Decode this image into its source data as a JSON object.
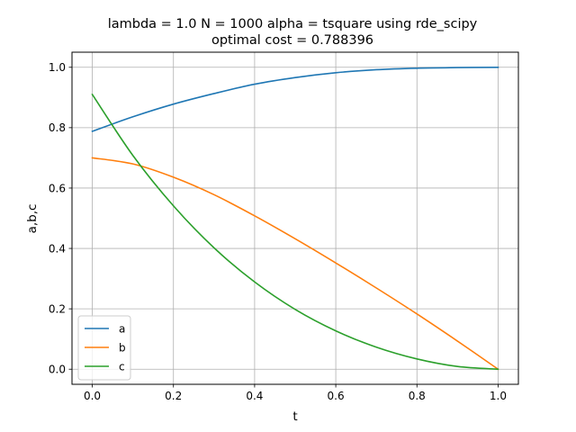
{
  "chart_data": {
    "type": "line",
    "title": "lambda = 1.0 N = 1000 alpha = tsquare using rde_scipy",
    "subtitle": "optimal cost = 0.788396",
    "xlabel": "t",
    "ylabel": "a,b,c",
    "xlim": [
      -0.05,
      1.05
    ],
    "ylim": [
      -0.05,
      1.05
    ],
    "xticks": [
      0.0,
      0.2,
      0.4,
      0.6,
      0.8,
      1.0
    ],
    "xtick_labels": [
      "0.0",
      "0.2",
      "0.4",
      "0.6",
      "0.8",
      "1.0"
    ],
    "yticks": [
      0.0,
      0.2,
      0.4,
      0.6,
      0.8,
      1.0
    ],
    "ytick_labels": [
      "0.0",
      "0.2",
      "0.4",
      "0.6",
      "0.8",
      "1.0"
    ],
    "grid": true,
    "legend_position": "lower-left",
    "x": [
      0.0,
      0.1,
      0.2,
      0.3,
      0.4,
      0.5,
      0.6,
      0.7,
      0.8,
      0.9,
      1.0
    ],
    "series": [
      {
        "name": "a",
        "color": "#1f77b4",
        "values": [
          0.788,
          0.836,
          0.878,
          0.913,
          0.944,
          0.966,
          0.982,
          0.992,
          0.997,
          0.999,
          1.0
        ]
      },
      {
        "name": "b",
        "color": "#ff7f0e",
        "values": [
          0.7,
          0.68,
          0.636,
          0.578,
          0.508,
          0.432,
          0.352,
          0.269,
          0.183,
          0.093,
          0.0
        ]
      },
      {
        "name": "c",
        "color": "#2ca02c",
        "values": [
          0.91,
          0.708,
          0.541,
          0.402,
          0.289,
          0.198,
          0.127,
          0.073,
          0.034,
          0.009,
          0.0
        ]
      }
    ]
  }
}
